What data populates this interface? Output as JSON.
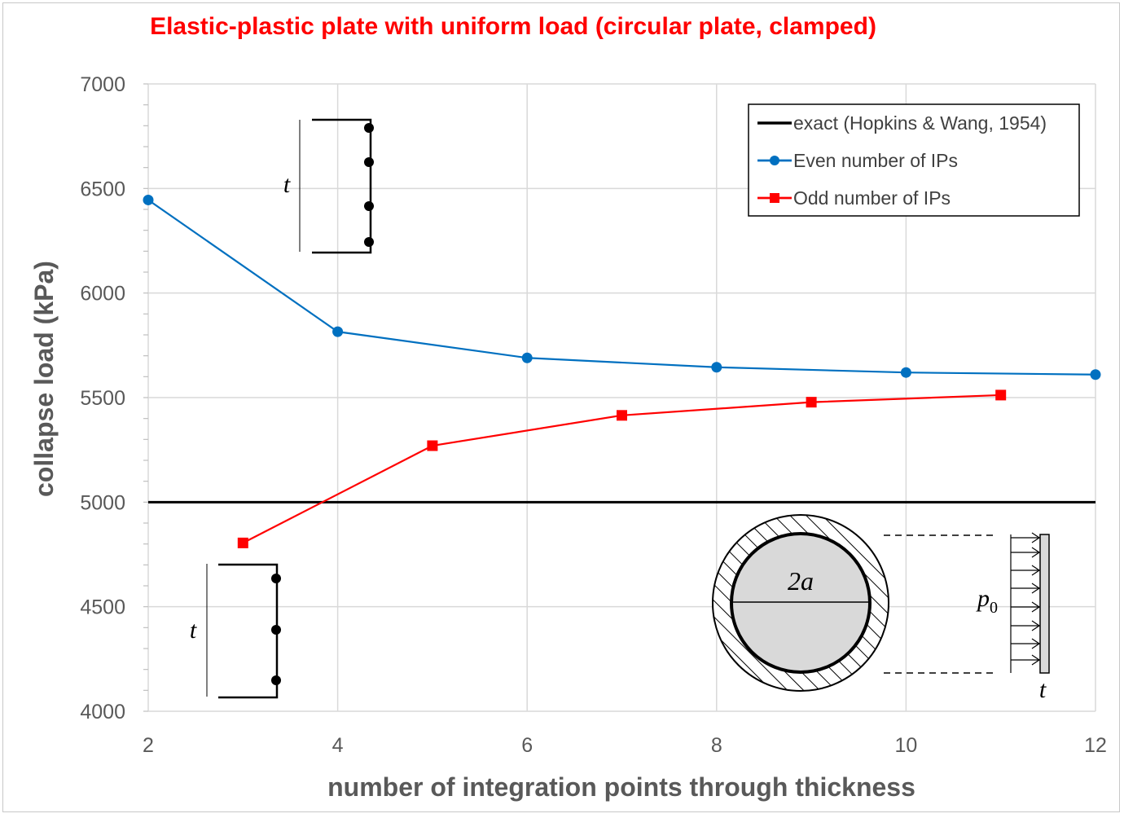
{
  "colors": {
    "title": "#ff0000",
    "exact": "#000000",
    "even": "#0070c0",
    "odd": "#ff0000",
    "grid": "#d9d9d9",
    "axis_text": "#595959"
  },
  "chart_data": {
    "type": "line",
    "title": "Elastic-plastic plate with uniform load (circular plate, clamped)",
    "xlabel": "number of integration points through thickness",
    "ylabel": "collapse load (kPa)",
    "xlim": [
      2,
      12
    ],
    "ylim": [
      4000,
      7000
    ],
    "xticks": [
      "2",
      "4",
      "6",
      "8",
      "10",
      "12"
    ],
    "yticks": [
      "4000",
      "4500",
      "5000",
      "5500",
      "6000",
      "6500",
      "7000"
    ],
    "grid": true,
    "legend_position": "top-right",
    "series": [
      {
        "name": "exact (Hopkins & Wang, 1954)",
        "marker": "none",
        "x": [
          2,
          12
        ],
        "y": [
          5000,
          5000
        ]
      },
      {
        "name": "Even number of IPs",
        "marker": "circle",
        "x": [
          2,
          4,
          6,
          8,
          10,
          12
        ],
        "y": [
          6445,
          5815,
          5690,
          5645,
          5620,
          5610
        ]
      },
      {
        "name": "Odd number of IPs",
        "marker": "square",
        "x": [
          3,
          5,
          7,
          9,
          11
        ],
        "y": [
          4805,
          5270,
          5415,
          5478,
          5512
        ]
      }
    ],
    "annotations": {
      "thickness_symbol": "t",
      "diameter_label": "2a",
      "load_symbol": "p",
      "load_subscript": "0"
    }
  }
}
